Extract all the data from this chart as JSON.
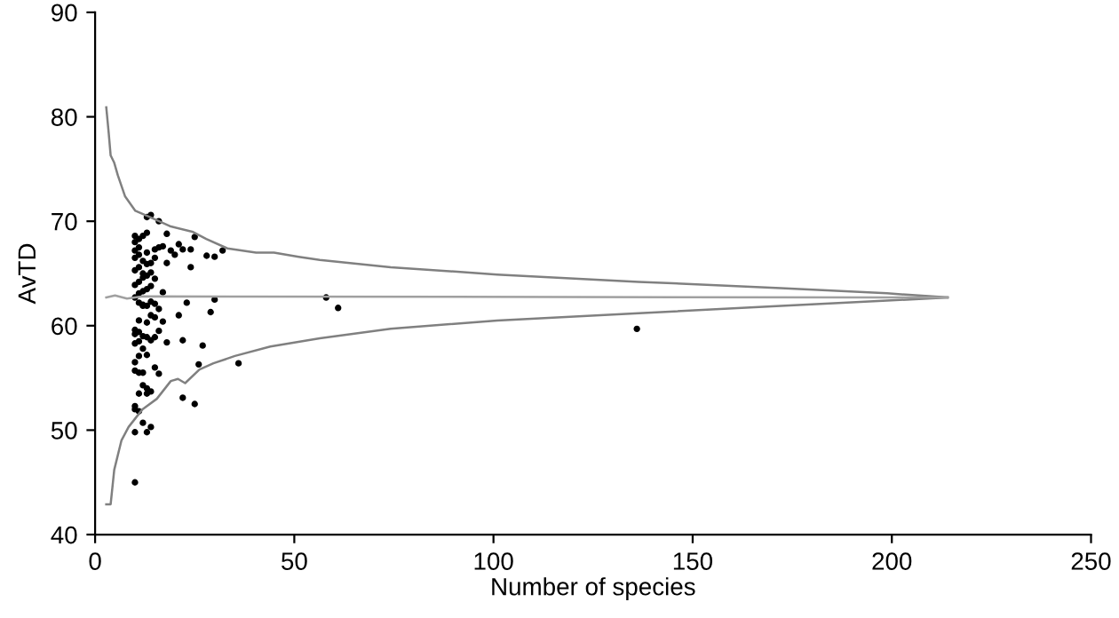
{
  "chart_data": {
    "type": "scatter",
    "xlabel": "Number of species",
    "ylabel": "AvTD",
    "xlim": [
      0,
      250
    ],
    "ylim": [
      40,
      90
    ],
    "xticks": [
      0,
      50,
      100,
      150,
      200,
      250
    ],
    "yticks": [
      40,
      50,
      60,
      70,
      80,
      90
    ],
    "grid": false,
    "series": [
      {
        "type": "line",
        "color": "#808080",
        "x": [
          2.8,
          3.4,
          3.9,
          4.8,
          5.7,
          7.5,
          10.1,
          13.7,
          19.0,
          24.4,
          27.9,
          33.2,
          40.4,
          44.9,
          51.1,
          56.4,
          74.2,
          100.9,
          136.5,
          172.1,
          198.8,
          214.0
        ],
        "values": [
          80.9,
          78.5,
          76.3,
          75.6,
          74.4,
          72.4,
          71.0,
          70.4,
          69.5,
          69.0,
          68.3,
          67.4,
          67.0,
          67.0,
          66.6,
          66.3,
          65.6,
          64.9,
          64.2,
          63.6,
          63.1,
          62.7
        ]
      },
      {
        "type": "line",
        "color": "#808080",
        "x": [
          2.8,
          3.9,
          4.8,
          6.6,
          8.4,
          11.9,
          15.5,
          19.0,
          20.8,
          22.6,
          26.2,
          29.7,
          35.1,
          44.0,
          56.4,
          74.2,
          100.9,
          136.5,
          172.1,
          198.8,
          214.0
        ],
        "values": [
          42.9,
          42.9,
          46.2,
          49.0,
          50.3,
          52.0,
          53.0,
          54.7,
          54.9,
          54.5,
          55.8,
          56.4,
          57.1,
          58.0,
          58.8,
          59.7,
          60.5,
          61.2,
          61.9,
          62.4,
          62.7
        ]
      },
      {
        "type": "line",
        "color": "#a0a0a0",
        "x": [
          2.8,
          5,
          8,
          12,
          214
        ],
        "values": [
          62.7,
          62.9,
          62.6,
          62.8,
          62.7
        ]
      },
      {
        "marker": "circle",
        "color": "#000000",
        "x": [
          136,
          58,
          61,
          36,
          25,
          22,
          30,
          29,
          27,
          26,
          22,
          23,
          21,
          32,
          30,
          28,
          25,
          24,
          24,
          22,
          21,
          20,
          19,
          18,
          18,
          17,
          16,
          16,
          15,
          15,
          14,
          13,
          13,
          12,
          17,
          17,
          18,
          16,
          15,
          14,
          13,
          12,
          12,
          13,
          14,
          10,
          10,
          10,
          10,
          11,
          11,
          13,
          11,
          12,
          10,
          10,
          11,
          13,
          12,
          10,
          11,
          13,
          10,
          10,
          11,
          12,
          14,
          15,
          16,
          16,
          15,
          14,
          13,
          12,
          11,
          10,
          11,
          12,
          13,
          14,
          10,
          11,
          12,
          13,
          14,
          10,
          11,
          12,
          13,
          10,
          11,
          12,
          10,
          11,
          10,
          11,
          10,
          13,
          14,
          15,
          12,
          11,
          13,
          14,
          15
        ],
        "values": [
          59.7,
          62.7,
          61.7,
          56.4,
          52.5,
          53.1,
          62.5,
          61.3,
          58.1,
          56.3,
          58.6,
          62.2,
          61.0,
          67.2,
          66.6,
          66.7,
          68.5,
          67.3,
          65.6,
          67.3,
          67.8,
          66.8,
          67.2,
          68.8,
          66.0,
          67.6,
          70.0,
          67.5,
          67.3,
          66.5,
          70.6,
          70.4,
          68.9,
          68.6,
          63.2,
          60.4,
          58.4,
          55.4,
          56.0,
          53.7,
          54.0,
          54.3,
          50.7,
          49.8,
          50.3,
          49.8,
          45.0,
          52.0,
          52.3,
          51.8,
          53.5,
          53.5,
          55.5,
          55.5,
          55.7,
          56.5,
          57.1,
          57.2,
          57.8,
          58.3,
          58.5,
          58.9,
          59.2,
          59.6,
          59.4,
          59.0,
          58.6,
          58.9,
          59.5,
          61.6,
          62.1,
          62.3,
          61.9,
          61.9,
          62.2,
          62.7,
          63.1,
          63.3,
          63.5,
          63.8,
          63.9,
          64.2,
          64.6,
          64.8,
          65.1,
          65.3,
          65.6,
          65.0,
          65.9,
          66.5,
          66.8,
          66.2,
          67.2,
          67.5,
          68.0,
          68.3,
          68.6,
          67.0,
          66.0,
          64.5,
          62.0,
          60.5,
          60.3,
          61.0,
          60.8
        ]
      }
    ]
  }
}
